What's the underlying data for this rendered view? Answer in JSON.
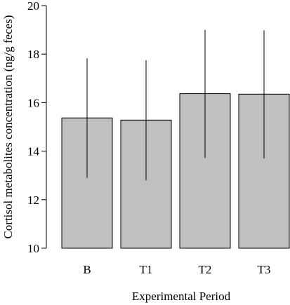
{
  "chart_data": {
    "type": "bar",
    "categories": [
      "B",
      "T1",
      "T2",
      "T3"
    ],
    "values": [
      15.37,
      15.28,
      16.37,
      16.35
    ],
    "error_bars": [
      {
        "low": 12.9,
        "high": 17.83
      },
      {
        "low": 12.8,
        "high": 17.75
      },
      {
        "low": 13.72,
        "high": 19.0
      },
      {
        "low": 13.7,
        "high": 18.98
      }
    ],
    "title": "",
    "xlabel": "Experimental Period",
    "ylabel": "Cortisol metabolites concentration (ng/g feces)",
    "ylim": [
      10,
      20
    ],
    "yticks": [
      10,
      12,
      14,
      16,
      18,
      20
    ],
    "grid": false,
    "bar_color": "#c0c0c0",
    "edge_color": "#000000"
  }
}
